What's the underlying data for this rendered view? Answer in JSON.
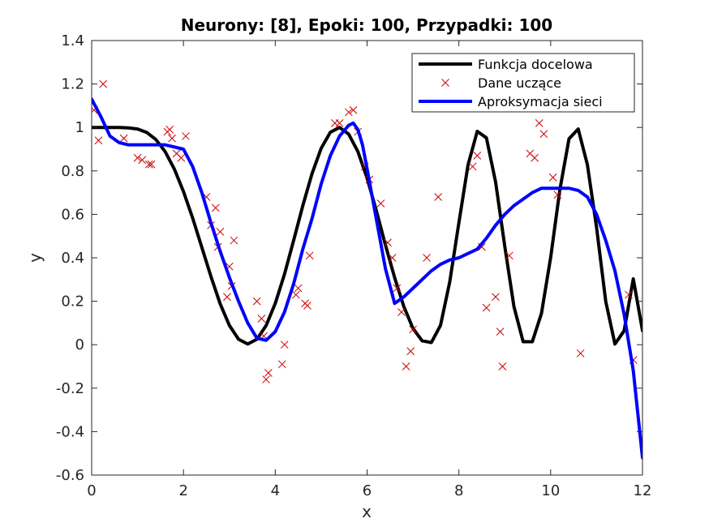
{
  "chart_data": {
    "type": "line",
    "title": "Neurony: [8], Epoki: 100, Przypadki: 100",
    "xlabel": "x",
    "ylabel": "y",
    "xlim": [
      0,
      12
    ],
    "ylim": [
      -0.6,
      1.4
    ],
    "xticks": [
      0,
      2,
      4,
      6,
      8,
      10,
      12
    ],
    "yticks": [
      -0.6,
      -0.4,
      -0.2,
      0,
      0.2,
      0.4,
      0.6,
      0.8,
      1,
      1.2,
      1.4
    ],
    "xtick_labels": [
      "0",
      "2",
      "4",
      "6",
      "8",
      "10",
      "12"
    ],
    "ytick_labels": [
      "-0.6",
      "-0.4",
      "-0.2",
      "0",
      "0.2",
      "0.4",
      "0.6",
      "0.8",
      "1",
      "1.2",
      "1.4"
    ],
    "grid": false,
    "legend_position": "top-right",
    "series": [
      {
        "name": "Funkcja docelowa",
        "kind": "line",
        "color": "#000000",
        "x": [
          0,
          0.2,
          0.4,
          0.6,
          0.8,
          1,
          1.2,
          1.4,
          1.6,
          1.8,
          2,
          2.2,
          2.4,
          2.6,
          2.8,
          3,
          3.2,
          3.4,
          3.6,
          3.8,
          4,
          4.2,
          4.4,
          4.6,
          4.8,
          5,
          5.2,
          5.4,
          5.6,
          5.8,
          6,
          6.2,
          6.4,
          6.6,
          6.8,
          7,
          7.2,
          7.4,
          7.6,
          7.8,
          8,
          8.2,
          8.4,
          8.6,
          8.8,
          9,
          9.2,
          9.4,
          9.6,
          9.8,
          10,
          10.2,
          10.4,
          10.6,
          10.8,
          11,
          11.2,
          11.4,
          11.6,
          11.8,
          12
        ],
        "y": [
          1,
          1,
          1,
          1,
          0.998,
          0.993,
          0.977,
          0.944,
          0.889,
          0.809,
          0.705,
          0.583,
          0.448,
          0.313,
          0.188,
          0.089,
          0.025,
          0.003,
          0.025,
          0.088,
          0.19,
          0.324,
          0.48,
          0.64,
          0.787,
          0.904,
          0.978,
          1,
          0.969,
          0.889,
          0.767,
          0.618,
          0.459,
          0.309,
          0.176,
          0.075,
          0.018,
          0.01,
          0.089,
          0.288,
          0.561,
          0.828,
          0.982,
          0.952,
          0.749,
          0.453,
          0.175,
          0.014,
          0.014,
          0.145,
          0.402,
          0.713,
          0.948,
          0.993,
          0.828,
          0.539,
          0.199,
          0.003,
          0.064,
          0.303,
          0.065
        ]
      },
      {
        "name": "Dane uczące",
        "kind": "scatter",
        "color": "#cc0000",
        "marker": "x",
        "x": [
          0.05,
          0.15,
          0.25,
          0.7,
          1.0,
          1.1,
          1.25,
          1.3,
          1.65,
          1.7,
          1.75,
          1.85,
          1.95,
          2.05,
          2.5,
          2.6,
          2.7,
          2.75,
          2.8,
          2.95,
          3.0,
          3.05,
          3.1,
          3.6,
          3.7,
          3.75,
          3.8,
          3.85,
          4.15,
          4.2,
          4.45,
          4.5,
          4.65,
          4.7,
          4.75,
          5.3,
          5.4,
          5.6,
          5.7,
          5.8,
          5.95,
          6.05,
          6.3,
          6.45,
          6.55,
          6.65,
          6.75,
          6.85,
          6.95,
          7.0,
          7.3,
          7.55,
          8.3,
          8.4,
          8.5,
          8.6,
          8.8,
          8.9,
          8.95,
          9.1,
          9.55,
          9.65,
          9.75,
          9.85,
          10.05,
          10.15,
          10.65,
          11.7,
          11.8
        ],
        "y": [
          1.08,
          0.94,
          1.2,
          0.95,
          0.86,
          0.85,
          0.83,
          0.83,
          0.98,
          0.99,
          0.95,
          0.88,
          0.86,
          0.96,
          0.68,
          0.55,
          0.63,
          0.45,
          0.52,
          0.22,
          0.36,
          0.27,
          0.48,
          0.2,
          0.12,
          0.04,
          -0.16,
          -0.13,
          -0.09,
          0.0,
          0.23,
          0.26,
          0.19,
          0.18,
          0.41,
          1.02,
          1.02,
          1.07,
          1.08,
          0.98,
          0.82,
          0.76,
          0.65,
          0.47,
          0.4,
          0.26,
          0.15,
          -0.1,
          -0.03,
          0.07,
          0.4,
          0.68,
          0.82,
          0.87,
          0.45,
          0.17,
          0.22,
          0.06,
          -0.1,
          0.41,
          0.88,
          0.86,
          1.02,
          0.97,
          0.77,
          0.69,
          -0.04,
          0.23,
          -0.07
        ]
      },
      {
        "name": "Aproksymacja sieci",
        "kind": "line",
        "color": "#0000ff",
        "x": [
          0,
          0.2,
          0.4,
          0.6,
          0.8,
          1,
          1.2,
          1.4,
          1.6,
          1.8,
          2,
          2.2,
          2.4,
          2.6,
          2.8,
          3,
          3.2,
          3.4,
          3.6,
          3.8,
          4,
          4.2,
          4.4,
          4.6,
          4.8,
          5,
          5.2,
          5.4,
          5.6,
          5.7,
          5.8,
          5.9,
          6,
          6.2,
          6.4,
          6.6,
          6.8,
          7,
          7.2,
          7.4,
          7.6,
          7.8,
          8,
          8.2,
          8.4,
          8.6,
          8.8,
          9,
          9.2,
          9.4,
          9.6,
          9.8,
          10,
          10.2,
          10.4,
          10.6,
          10.8,
          11,
          11.2,
          11.4,
          11.6,
          11.8,
          12
        ],
        "y": [
          1.13,
          1.05,
          0.96,
          0.93,
          0.92,
          0.92,
          0.92,
          0.92,
          0.92,
          0.91,
          0.9,
          0.82,
          0.7,
          0.56,
          0.43,
          0.31,
          0.2,
          0.1,
          0.03,
          0.02,
          0.06,
          0.15,
          0.28,
          0.44,
          0.58,
          0.74,
          0.87,
          0.96,
          1.01,
          1.02,
          0.99,
          0.92,
          0.81,
          0.58,
          0.35,
          0.19,
          0.22,
          0.26,
          0.3,
          0.34,
          0.37,
          0.39,
          0.4,
          0.42,
          0.44,
          0.49,
          0.55,
          0.6,
          0.64,
          0.67,
          0.7,
          0.72,
          0.72,
          0.72,
          0.72,
          0.71,
          0.68,
          0.6,
          0.48,
          0.34,
          0.14,
          -0.12,
          -0.52
        ]
      }
    ]
  }
}
